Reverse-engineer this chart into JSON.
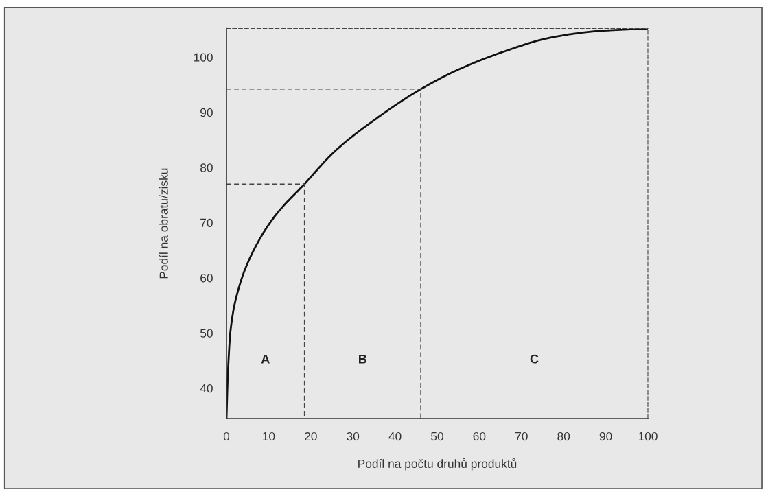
{
  "chart_data": {
    "type": "line",
    "xlabel": "Podíl na počtu druhů produktů",
    "ylabel": "Podíl na obratu/zisku",
    "xlim": [
      0,
      100
    ],
    "ylim": [
      34.5,
      105.2
    ],
    "xticks": [
      0,
      10,
      20,
      30,
      40,
      50,
      60,
      70,
      80,
      90,
      100
    ],
    "yticks": [
      40,
      50,
      60,
      70,
      80,
      90,
      100
    ],
    "grid": false,
    "legend": false,
    "series": [
      {
        "color": "#111111",
        "line_style": "solid",
        "x": [
          0,
          0.3,
          1.0,
          2.9,
          6.2,
          11.4,
          18.5,
          25.8,
          35.6,
          46.1,
          54.9,
          65.8,
          76.7,
          87.6,
          100
        ],
        "values": [
          34.5,
          42,
          50.7,
          58.1,
          64.6,
          71.1,
          77.0,
          83.0,
          88.9,
          94.2,
          97.7,
          101.0,
          103.5,
          104.7,
          105.2
        ]
      },
      {
        "color": "#444444",
        "line_style": "dashed",
        "x": [
          0,
          18.5,
          18.5
        ],
        "values": [
          77.0,
          77.0,
          34.5
        ]
      },
      {
        "color": "#444444",
        "line_style": "dashed",
        "x": [
          0,
          46.1,
          46.1
        ],
        "values": [
          94.2,
          94.2,
          34.5
        ]
      }
    ],
    "annotations": [
      "A",
      "B",
      "C"
    ]
  }
}
